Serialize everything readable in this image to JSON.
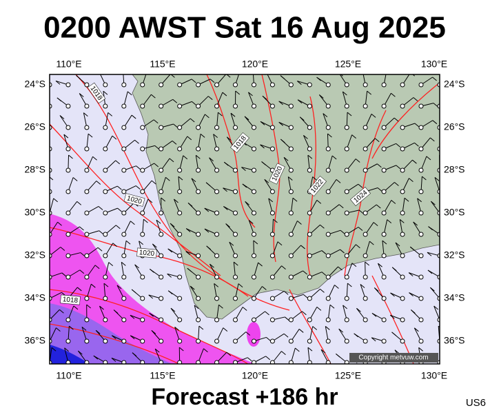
{
  "header": {
    "title": "0200 AWST Sat 16 Aug 2025"
  },
  "map": {
    "lon_labels": [
      "110°E",
      "115°E",
      "120°E",
      "125°E",
      "130°E"
    ],
    "lat_labels": [
      "24°S",
      "26°S",
      "28°S",
      "30°S",
      "32°S",
      "34°S",
      "36°S"
    ],
    "isobar_labels": [
      "1018",
      "1020",
      "1020",
      "1018",
      "1018",
      "1020",
      "1022",
      "1024"
    ],
    "copyright": "Copyright metvuw.com"
  },
  "footer": {
    "forecast": "Forecast +186 hr",
    "code": "US6"
  }
}
